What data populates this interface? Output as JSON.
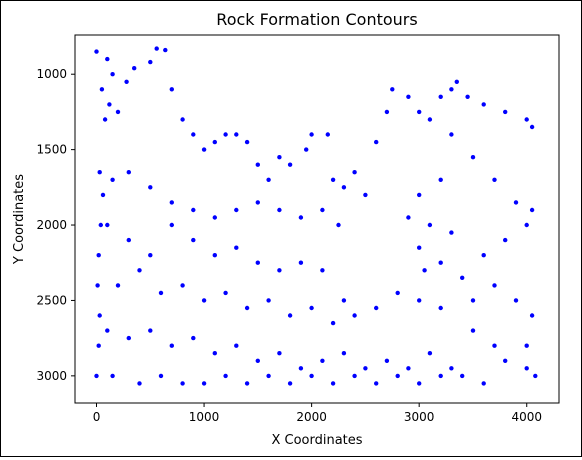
{
  "chart_data": {
    "type": "scatter",
    "title": "Rock Formation Contours",
    "xlabel": "X Coordinates",
    "ylabel": "Y Coordinates",
    "xlim": [
      -200,
      4300
    ],
    "ylim": [
      3180,
      740
    ],
    "y_inverted": true,
    "xticks": [
      0,
      1000,
      2000,
      3000,
      4000
    ],
    "yticks": [
      1000,
      1500,
      2000,
      2500,
      3000
    ],
    "grid": false,
    "legend": "none",
    "marker_color": "#0000ff",
    "series": [
      {
        "points": [
          [
            0,
            850
          ],
          [
            100,
            900
          ],
          [
            150,
            1000
          ],
          [
            50,
            1100
          ],
          [
            120,
            1200
          ],
          [
            80,
            1300
          ],
          [
            200,
            1250
          ],
          [
            280,
            1050
          ],
          [
            350,
            960
          ],
          [
            30,
            1650
          ],
          [
            60,
            1800
          ],
          [
            40,
            2000
          ],
          [
            20,
            2200
          ],
          [
            10,
            2400
          ],
          [
            30,
            2600
          ],
          [
            20,
            2800
          ],
          [
            0,
            3000
          ],
          [
            500,
            920
          ],
          [
            560,
            830
          ],
          [
            640,
            840
          ],
          [
            700,
            1100
          ],
          [
            800,
            1300
          ],
          [
            900,
            1400
          ],
          [
            1000,
            1500
          ],
          [
            1100,
            1450
          ],
          [
            1200,
            1400
          ],
          [
            1300,
            1400
          ],
          [
            1400,
            1450
          ],
          [
            1500,
            1600
          ],
          [
            1600,
            1700
          ],
          [
            1700,
            1550
          ],
          [
            1800,
            1600
          ],
          [
            1950,
            1500
          ],
          [
            2000,
            1400
          ],
          [
            2150,
            1400
          ],
          [
            2200,
            1700
          ],
          [
            2300,
            1750
          ],
          [
            2400,
            1650
          ],
          [
            2500,
            1800
          ],
          [
            2600,
            1450
          ],
          [
            2700,
            1250
          ],
          [
            2750,
            1100
          ],
          [
            2900,
            1150
          ],
          [
            3000,
            1250
          ],
          [
            3100,
            1300
          ],
          [
            3200,
            1150
          ],
          [
            3300,
            1100
          ],
          [
            3350,
            1050
          ],
          [
            3450,
            1150
          ],
          [
            3600,
            1200
          ],
          [
            3800,
            1250
          ],
          [
            4000,
            1300
          ],
          [
            4050,
            1350
          ],
          [
            3300,
            1400
          ],
          [
            3500,
            1550
          ],
          [
            3700,
            1700
          ],
          [
            3900,
            1850
          ],
          [
            4050,
            1900
          ],
          [
            3200,
            1700
          ],
          [
            3000,
            1800
          ],
          [
            2900,
            1950
          ],
          [
            3100,
            2000
          ],
          [
            3300,
            2050
          ],
          [
            3000,
            2150
          ],
          [
            3050,
            2300
          ],
          [
            3200,
            2250
          ],
          [
            3400,
            2350
          ],
          [
            3600,
            2200
          ],
          [
            3800,
            2100
          ],
          [
            4000,
            2000
          ],
          [
            3700,
            2400
          ],
          [
            3500,
            2500
          ],
          [
            3900,
            2500
          ],
          [
            4050,
            2600
          ],
          [
            4000,
            2800
          ],
          [
            3800,
            2900
          ],
          [
            3600,
            3050
          ],
          [
            3400,
            3000
          ],
          [
            150,
            1700
          ],
          [
            300,
            1650
          ],
          [
            500,
            1750
          ],
          [
            700,
            1850
          ],
          [
            900,
            1900
          ],
          [
            1100,
            1950
          ],
          [
            1300,
            1900
          ],
          [
            1500,
            1850
          ],
          [
            1700,
            1900
          ],
          [
            1900,
            1950
          ],
          [
            2100,
            1900
          ],
          [
            2250,
            2000
          ],
          [
            100,
            2000
          ],
          [
            300,
            2100
          ],
          [
            500,
            2200
          ],
          [
            700,
            2000
          ],
          [
            900,
            2100
          ],
          [
            1100,
            2200
          ],
          [
            1300,
            2150
          ],
          [
            1500,
            2250
          ],
          [
            1700,
            2300
          ],
          [
            1900,
            2250
          ],
          [
            2100,
            2300
          ],
          [
            2300,
            2500
          ],
          [
            200,
            2400
          ],
          [
            400,
            2300
          ],
          [
            600,
            2450
          ],
          [
            800,
            2400
          ],
          [
            1000,
            2500
          ],
          [
            1200,
            2450
          ],
          [
            1400,
            2550
          ],
          [
            1600,
            2500
          ],
          [
            1800,
            2600
          ],
          [
            2000,
            2550
          ],
          [
            2200,
            2650
          ],
          [
            2400,
            2600
          ],
          [
            2600,
            2550
          ],
          [
            2800,
            2450
          ],
          [
            3000,
            2500
          ],
          [
            3200,
            2550
          ],
          [
            100,
            2700
          ],
          [
            300,
            2750
          ],
          [
            500,
            2700
          ],
          [
            700,
            2800
          ],
          [
            900,
            2750
          ],
          [
            1100,
            2850
          ],
          [
            1300,
            2800
          ],
          [
            1500,
            2900
          ],
          [
            1700,
            2850
          ],
          [
            1900,
            2950
          ],
          [
            2100,
            2900
          ],
          [
            2300,
            2850
          ],
          [
            2500,
            2950
          ],
          [
            2700,
            2900
          ],
          [
            2900,
            2950
          ],
          [
            3100,
            2850
          ],
          [
            3300,
            2950
          ],
          [
            150,
            3000
          ],
          [
            400,
            3050
          ],
          [
            600,
            3000
          ],
          [
            800,
            3050
          ],
          [
            1000,
            3050
          ],
          [
            1200,
            3000
          ],
          [
            1400,
            3050
          ],
          [
            1600,
            3000
          ],
          [
            1800,
            3050
          ],
          [
            2000,
            3000
          ],
          [
            2200,
            3050
          ],
          [
            2400,
            3000
          ],
          [
            2600,
            3050
          ],
          [
            2800,
            3000
          ],
          [
            3000,
            3050
          ],
          [
            3200,
            3000
          ],
          [
            3500,
            2700
          ],
          [
            3700,
            2800
          ],
          [
            4000,
            2950
          ],
          [
            4080,
            3000
          ]
        ]
      }
    ]
  }
}
